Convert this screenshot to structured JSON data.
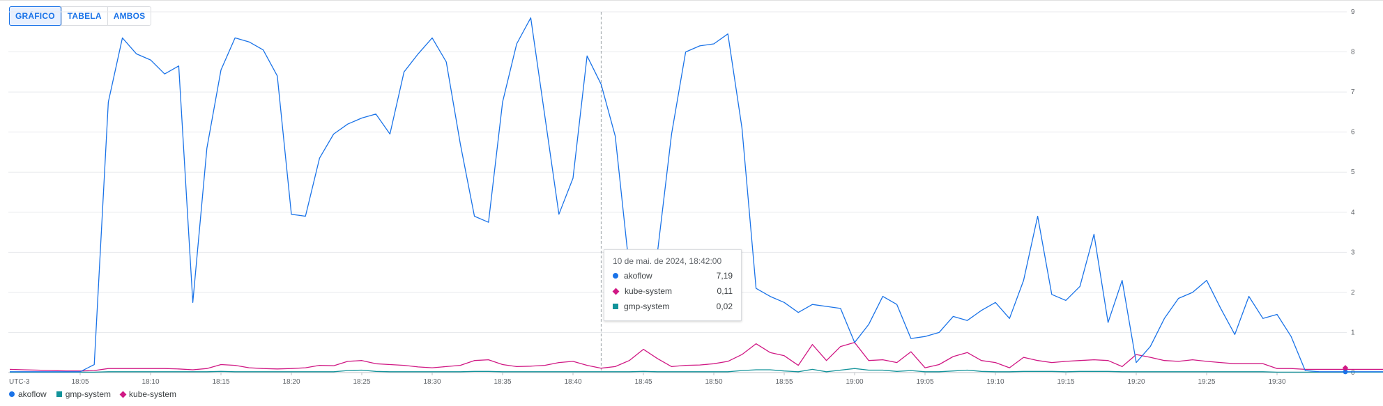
{
  "toggle": {
    "chart_label": "GRÁFICO",
    "table_label": "TABELA",
    "both_label": "AMBOS"
  },
  "timezone_label": "UTC-3",
  "tooltip": {
    "title": "10 de mai. de 2024, 18:42:00",
    "rows": [
      {
        "name": "akoflow",
        "value": "7,19"
      },
      {
        "name": "kube-system",
        "value": "0,11"
      },
      {
        "name": "gmp-system",
        "value": "0,02"
      }
    ]
  },
  "legend": [
    {
      "name": "akoflow",
      "marker": "circle",
      "color": "#1a73e8"
    },
    {
      "name": "gmp-system",
      "marker": "square",
      "color": "#12939a"
    },
    {
      "name": "kube-system",
      "marker": "diamond",
      "color": "#d01884"
    }
  ],
  "chart_data": {
    "type": "line",
    "x_start": "18:00",
    "x_step_minutes": 1,
    "x_tick_labels": [
      "18:05",
      "18:10",
      "18:15",
      "18:20",
      "18:25",
      "18:30",
      "18:35",
      "18:40",
      "18:45",
      "18:50",
      "18:55",
      "19:00",
      "19:05",
      "19:10",
      "19:15",
      "19:20",
      "19:25",
      "19:30"
    ],
    "ylim": [
      0,
      9
    ],
    "y_ticks": [
      0,
      1,
      2,
      3,
      4,
      5,
      6,
      7,
      8,
      9
    ],
    "y_axis_side": "right",
    "grid": true,
    "legend_position": "bottom-left",
    "crosshair_time": "18:42",
    "series": [
      {
        "name": "akoflow",
        "color": "#1a73e8",
        "values": [
          0.02,
          0.02,
          0.02,
          0.02,
          0.02,
          0.02,
          0.2,
          6.75,
          8.35,
          7.95,
          7.8,
          7.45,
          7.65,
          1.75,
          5.6,
          7.55,
          8.35,
          8.25,
          8.05,
          7.4,
          3.95,
          3.9,
          5.35,
          5.95,
          6.2,
          6.35,
          6.45,
          5.95,
          7.5,
          7.95,
          8.35,
          7.75,
          5.7,
          3.9,
          3.75,
          6.75,
          8.2,
          8.85,
          6.4,
          3.95,
          4.85,
          7.9,
          7.19,
          5.9,
          2.6,
          2.6,
          3.0,
          5.95,
          8.0,
          8.15,
          8.2,
          8.45,
          6.1,
          2.1,
          1.9,
          1.75,
          1.5,
          1.7,
          1.65,
          1.6,
          0.75,
          1.2,
          1.9,
          1.7,
          0.85,
          0.9,
          1.0,
          1.4,
          1.3,
          1.55,
          1.75,
          1.35,
          2.3,
          3.9,
          1.95,
          1.8,
          2.15,
          3.45,
          1.25,
          2.3,
          0.25,
          0.65,
          1.35,
          1.85,
          2.0,
          2.3,
          1.6,
          0.95,
          1.9,
          1.35,
          1.45,
          0.9,
          0.05,
          0.02,
          0.02,
          0.02,
          0.02,
          0.02,
          0.02,
          0.02
        ]
      },
      {
        "name": "kube-system",
        "color": "#d01884",
        "values": [
          0.08,
          0.07,
          0.06,
          0.05,
          0.04,
          0.04,
          0.05,
          0.1,
          0.1,
          0.1,
          0.1,
          0.1,
          0.09,
          0.07,
          0.1,
          0.2,
          0.18,
          0.12,
          0.1,
          0.09,
          0.1,
          0.12,
          0.18,
          0.17,
          0.28,
          0.3,
          0.22,
          0.2,
          0.18,
          0.14,
          0.12,
          0.15,
          0.18,
          0.3,
          0.32,
          0.2,
          0.15,
          0.16,
          0.18,
          0.25,
          0.28,
          0.18,
          0.11,
          0.15,
          0.3,
          0.58,
          0.35,
          0.15,
          0.18,
          0.19,
          0.22,
          0.28,
          0.45,
          0.72,
          0.5,
          0.42,
          0.18,
          0.7,
          0.3,
          0.65,
          0.75,
          0.3,
          0.32,
          0.25,
          0.52,
          0.12,
          0.2,
          0.4,
          0.5,
          0.3,
          0.25,
          0.12,
          0.38,
          0.3,
          0.25,
          0.28,
          0.3,
          0.32,
          0.3,
          0.15,
          0.45,
          0.38,
          0.3,
          0.28,
          0.32,
          0.28,
          0.25,
          0.22,
          0.22,
          0.22,
          0.1,
          0.1,
          0.08,
          0.08,
          0.08,
          0.08,
          0.08,
          0.08,
          0.08,
          0.08
        ]
      },
      {
        "name": "gmp-system",
        "color": "#12939a",
        "values": [
          0.01,
          0.01,
          0.01,
          0.01,
          0.01,
          0.01,
          0.01,
          0.02,
          0.02,
          0.02,
          0.02,
          0.02,
          0.02,
          0.02,
          0.02,
          0.03,
          0.02,
          0.02,
          0.02,
          0.02,
          0.02,
          0.02,
          0.02,
          0.02,
          0.05,
          0.06,
          0.03,
          0.02,
          0.02,
          0.02,
          0.02,
          0.02,
          0.02,
          0.03,
          0.03,
          0.02,
          0.02,
          0.02,
          0.02,
          0.02,
          0.02,
          0.02,
          0.02,
          0.02,
          0.02,
          0.03,
          0.02,
          0.02,
          0.02,
          0.02,
          0.02,
          0.02,
          0.05,
          0.07,
          0.07,
          0.04,
          0.02,
          0.08,
          0.02,
          0.06,
          0.1,
          0.06,
          0.06,
          0.03,
          0.05,
          0.02,
          0.02,
          0.04,
          0.06,
          0.03,
          0.02,
          0.02,
          0.03,
          0.03,
          0.03,
          0.02,
          0.03,
          0.03,
          0.03,
          0.02,
          0.02,
          0.02,
          0.02,
          0.02,
          0.02,
          0.02,
          0.02,
          0.02,
          0.02,
          0.02,
          0.01,
          0.01,
          0.01,
          0.01,
          0.01,
          0.01,
          0.01,
          0.01,
          0.01,
          0.01
        ]
      }
    ]
  }
}
